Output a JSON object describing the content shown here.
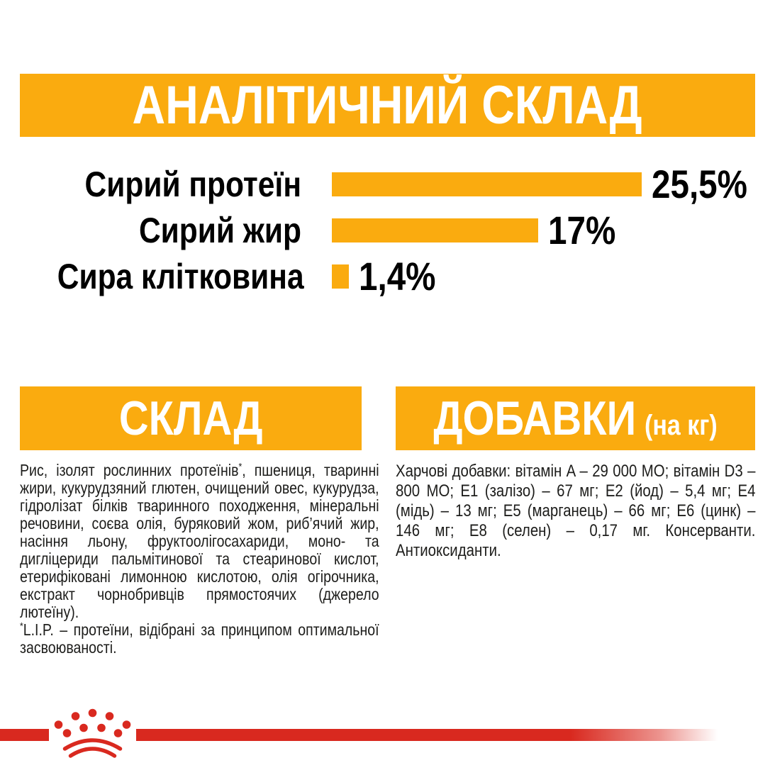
{
  "page": {
    "background": "#ffffff",
    "accent_color": "#FAAB0F",
    "brand_red": "#D9291F",
    "text_color": "#1d1d1b"
  },
  "header": {
    "title": "АНАЛІТИЧНИЙ СКЛАД"
  },
  "chart_data": {
    "type": "bar",
    "orientation": "horizontal",
    "title": "АНАЛІТИЧНИЙ СКЛАД",
    "categories": [
      "Сирий протеїн",
      "Сирий жир",
      "Сира клітковина"
    ],
    "values": [
      25.5,
      17,
      1.4
    ],
    "value_labels": [
      "25,5%",
      "17%",
      "1,4%"
    ],
    "unit": "%",
    "xlim": [
      0,
      25.5
    ],
    "bar_color": "#FAAB0F",
    "label_color": "#000000",
    "grid": false,
    "legend": false
  },
  "composition": {
    "heading": "СКЛАД",
    "text_main": "Рис, ізолят рослинних протеїнів",
    "text_sup": "*",
    "text_rest": ", пшениця, тваринні жири, кукурудзяний глютен, очищений овес, кукурудза, гідролізат білків тваринного походження, мінеральні речовини, соєва олія, буряковий жом, риб’ячий жир, насіння льону, фруктоолігосахариди, моно- та дигліцериди пальмітинової та стеаринової кислот, етерифіковані лимонною кислотою, олія огірочника, екстракт чорнобривців прямостоячих (джерело лютеїну).",
    "footnote_sup": "*",
    "footnote": "L.I.P. – протеїни, відібрані за принципом оптимальної засвоюваності."
  },
  "additives": {
    "heading": "ДОБАВКИ",
    "heading_suffix": "(на кг)",
    "text": "Харчові добавки: вітамін A – 29 000 МО; вітамін D3 – 800 МО; Е1 (залізо) – 67 мг; Е2 (йод) – 5,4 мг; Е4 (мідь) – 13 мг; Е5 (марганець) – 66 мг; Е6 (цинк) – 146 мг; Е8 (селен) – 0,17 мг. Консерванти. Антиоксиданти."
  },
  "footer": {
    "logo": "royal-canin-crown"
  }
}
